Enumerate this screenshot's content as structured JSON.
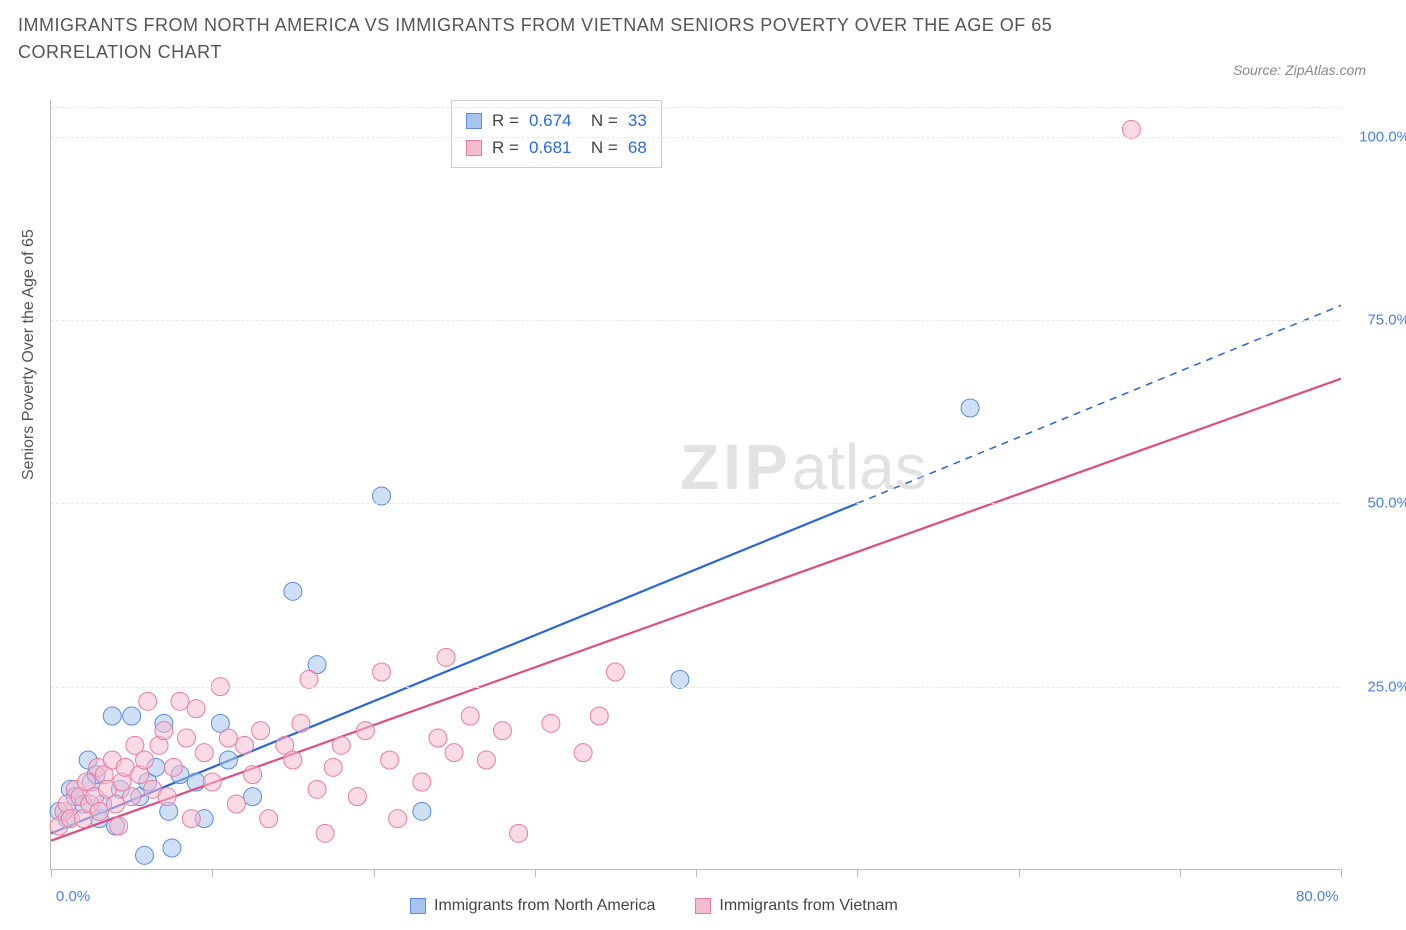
{
  "title": "IMMIGRANTS FROM NORTH AMERICA VS IMMIGRANTS FROM VIETNAM SENIORS POVERTY OVER THE AGE OF 65 CORRELATION CHART",
  "source": "Source: ZipAtlas.com",
  "ylabel": "Seniors Poverty Over the Age of 65",
  "watermark_a": "ZIP",
  "watermark_b": "atlas",
  "chart": {
    "type": "scatter",
    "background_color": "#ffffff",
    "grid_color": "#e8e8e8",
    "axis_color": "#bbbbbb",
    "tick_label_color": "#4a80e8",
    "xlim": [
      0,
      80
    ],
    "ylim": [
      0,
      105
    ],
    "xticks": [
      0,
      10,
      20,
      30,
      40,
      50,
      60,
      70,
      80
    ],
    "xtick_labels": {
      "0": "0.0%",
      "80": "80.0%"
    },
    "yticks": [
      25,
      50,
      75,
      100
    ],
    "ytick_labels": {
      "25": "25.0%",
      "50": "50.0%",
      "75": "75.0%",
      "100": "100.0%"
    },
    "point_radius": 9,
    "point_opacity": 0.55,
    "line_width": 2.2,
    "series": [
      {
        "name": "Immigrants from North America",
        "color": "#5a8de0",
        "fill_color": "#a8c4ee",
        "line_color": "#2a66d8",
        "r_value": "0.674",
        "n_value": "33",
        "trend": {
          "x1": 0,
          "y1": 5,
          "x2_solid": 50,
          "y2_solid": 50,
          "x2": 80,
          "y2": 77
        },
        "points": [
          [
            0.5,
            8
          ],
          [
            1,
            7
          ],
          [
            1.2,
            11
          ],
          [
            1.5,
            10
          ],
          [
            2,
            9
          ],
          [
            2.3,
            15
          ],
          [
            2.5,
            12
          ],
          [
            2.8,
            13
          ],
          [
            3,
            7
          ],
          [
            3.2,
            9
          ],
          [
            3.8,
            21
          ],
          [
            4,
            6
          ],
          [
            4.3,
            11
          ],
          [
            5,
            21
          ],
          [
            5.5,
            10
          ],
          [
            5.8,
            2
          ],
          [
            6,
            12
          ],
          [
            6.5,
            14
          ],
          [
            7,
            20
          ],
          [
            7.3,
            8
          ],
          [
            7.5,
            3
          ],
          [
            8,
            13
          ],
          [
            9,
            12
          ],
          [
            9.5,
            7
          ],
          [
            10.5,
            20
          ],
          [
            11,
            15
          ],
          [
            12.5,
            10
          ],
          [
            15,
            38
          ],
          [
            16.5,
            28
          ],
          [
            20.5,
            51
          ],
          [
            23,
            8
          ],
          [
            39,
            26
          ],
          [
            57,
            63
          ]
        ]
      },
      {
        "name": "Immigrants from Vietnam",
        "color": "#e87da0",
        "fill_color": "#f4bcd0",
        "line_color": "#e04c82",
        "r_value": "0.681",
        "n_value": "68",
        "trend": {
          "x1": 0,
          "y1": 4,
          "x2_solid": 80,
          "y2_solid": 67,
          "x2": 80,
          "y2": 67
        },
        "points": [
          [
            0.5,
            6
          ],
          [
            0.8,
            8
          ],
          [
            1,
            9
          ],
          [
            1.2,
            7
          ],
          [
            1.5,
            11
          ],
          [
            1.8,
            10
          ],
          [
            2,
            7
          ],
          [
            2.2,
            12
          ],
          [
            2.4,
            9
          ],
          [
            2.7,
            10
          ],
          [
            2.9,
            14
          ],
          [
            3,
            8
          ],
          [
            3.3,
            13
          ],
          [
            3.5,
            11
          ],
          [
            3.8,
            15
          ],
          [
            4,
            9
          ],
          [
            4.2,
            6
          ],
          [
            4.4,
            12
          ],
          [
            4.6,
            14
          ],
          [
            5,
            10
          ],
          [
            5.2,
            17
          ],
          [
            5.5,
            13
          ],
          [
            5.8,
            15
          ],
          [
            6,
            23
          ],
          [
            6.3,
            11
          ],
          [
            6.7,
            17
          ],
          [
            7,
            19
          ],
          [
            7.2,
            10
          ],
          [
            7.6,
            14
          ],
          [
            8,
            23
          ],
          [
            8.4,
            18
          ],
          [
            8.7,
            7
          ],
          [
            9,
            22
          ],
          [
            9.5,
            16
          ],
          [
            10,
            12
          ],
          [
            10.5,
            25
          ],
          [
            11,
            18
          ],
          [
            11.5,
            9
          ],
          [
            12,
            17
          ],
          [
            12.5,
            13
          ],
          [
            13,
            19
          ],
          [
            13.5,
            7
          ],
          [
            14.5,
            17
          ],
          [
            15,
            15
          ],
          [
            15.5,
            20
          ],
          [
            16,
            26
          ],
          [
            16.5,
            11
          ],
          [
            17,
            5
          ],
          [
            17.5,
            14
          ],
          [
            18,
            17
          ],
          [
            19,
            10
          ],
          [
            19.5,
            19
          ],
          [
            20.5,
            27
          ],
          [
            21,
            15
          ],
          [
            21.5,
            7
          ],
          [
            23,
            12
          ],
          [
            24,
            18
          ],
          [
            24.5,
            29
          ],
          [
            25,
            16
          ],
          [
            26,
            21
          ],
          [
            27,
            15
          ],
          [
            28,
            19
          ],
          [
            29,
            5
          ],
          [
            31,
            20
          ],
          [
            33,
            16
          ],
          [
            34,
            21
          ],
          [
            35,
            27
          ],
          [
            67,
            101
          ]
        ]
      }
    ]
  },
  "bottom_legend": [
    {
      "label": "Immigrants from North America",
      "fill": "#a8c4ee",
      "border": "#5a8de0"
    },
    {
      "label": "Immigrants from Vietnam",
      "fill": "#f4bcd0",
      "border": "#e87da0"
    }
  ]
}
